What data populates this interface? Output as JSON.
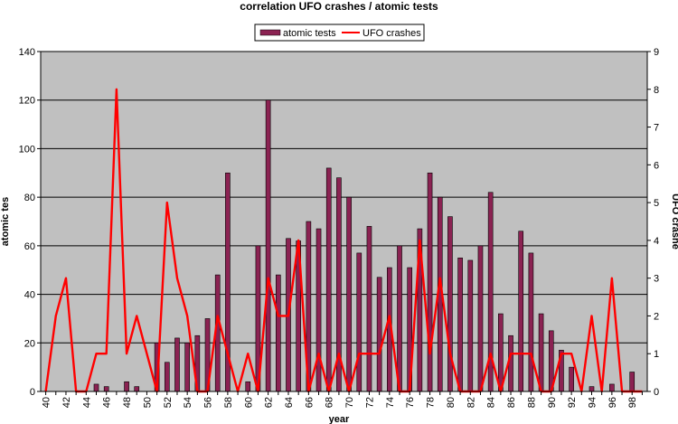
{
  "chart_data": {
    "type": "bar",
    "title": "correlation UFO crashes / atomic tests",
    "xlabel": "year",
    "ylabel": "atomic tes",
    "y2label": "UFO crashe",
    "ylim": [
      0,
      140
    ],
    "y2lim": [
      0,
      9
    ],
    "yticks": [
      0,
      20,
      40,
      60,
      80,
      100,
      120,
      140
    ],
    "y2ticks": [
      0,
      1,
      2,
      3,
      4,
      5,
      6,
      7,
      8,
      9
    ],
    "x": [
      40,
      41,
      42,
      43,
      44,
      45,
      46,
      47,
      48,
      49,
      50,
      51,
      52,
      53,
      54,
      55,
      56,
      57,
      58,
      59,
      60,
      61,
      62,
      63,
      64,
      65,
      66,
      67,
      68,
      69,
      70,
      71,
      72,
      73,
      74,
      75,
      76,
      77,
      78,
      79,
      80,
      81,
      82,
      83,
      84,
      85,
      86,
      87,
      88,
      89,
      90,
      91,
      92,
      93,
      94,
      95,
      96,
      97,
      98,
      99
    ],
    "xtick_labels": [
      "40",
      "42",
      "44",
      "46",
      "48",
      "50",
      "52",
      "54",
      "56",
      "58",
      "60",
      "62",
      "64",
      "66",
      "68",
      "70",
      "72",
      "74",
      "76",
      "78",
      "80",
      "82",
      "84",
      "86",
      "88",
      "90",
      "92",
      "94",
      "96",
      "98"
    ],
    "grid": true,
    "legend_position": "top-center",
    "series": [
      {
        "name": "atomic tests",
        "kind": "bar",
        "axis": "left",
        "color": "#8B2252",
        "values": [
          0,
          0,
          0,
          0,
          0,
          3,
          2,
          0,
          4,
          2,
          0,
          20,
          12,
          22,
          20,
          23,
          30,
          48,
          90,
          0,
          4,
          60,
          120,
          48,
          63,
          62,
          70,
          67,
          92,
          88,
          80,
          57,
          68,
          47,
          51,
          60,
          51,
          67,
          90,
          80,
          72,
          55,
          54,
          60,
          82,
          32,
          23,
          66,
          57,
          32,
          25,
          17,
          10,
          0,
          2,
          0,
          3,
          0,
          8,
          0
        ]
      },
      {
        "name": "UFO crashes",
        "kind": "line",
        "axis": "right",
        "color": "#FF0000",
        "values": [
          0,
          2,
          3,
          0,
          0,
          1,
          1,
          8,
          1,
          2,
          1,
          0,
          5,
          3,
          2,
          0,
          0,
          2,
          1,
          0,
          1,
          0,
          3,
          2,
          2,
          4,
          0,
          1,
          0,
          1,
          0,
          1,
          1,
          1,
          2,
          0,
          0,
          4,
          1,
          3,
          1,
          0,
          0,
          0,
          1,
          0,
          1,
          1,
          1,
          0,
          0,
          1,
          1,
          0,
          2,
          0,
          3,
          0,
          0,
          0
        ]
      }
    ]
  }
}
